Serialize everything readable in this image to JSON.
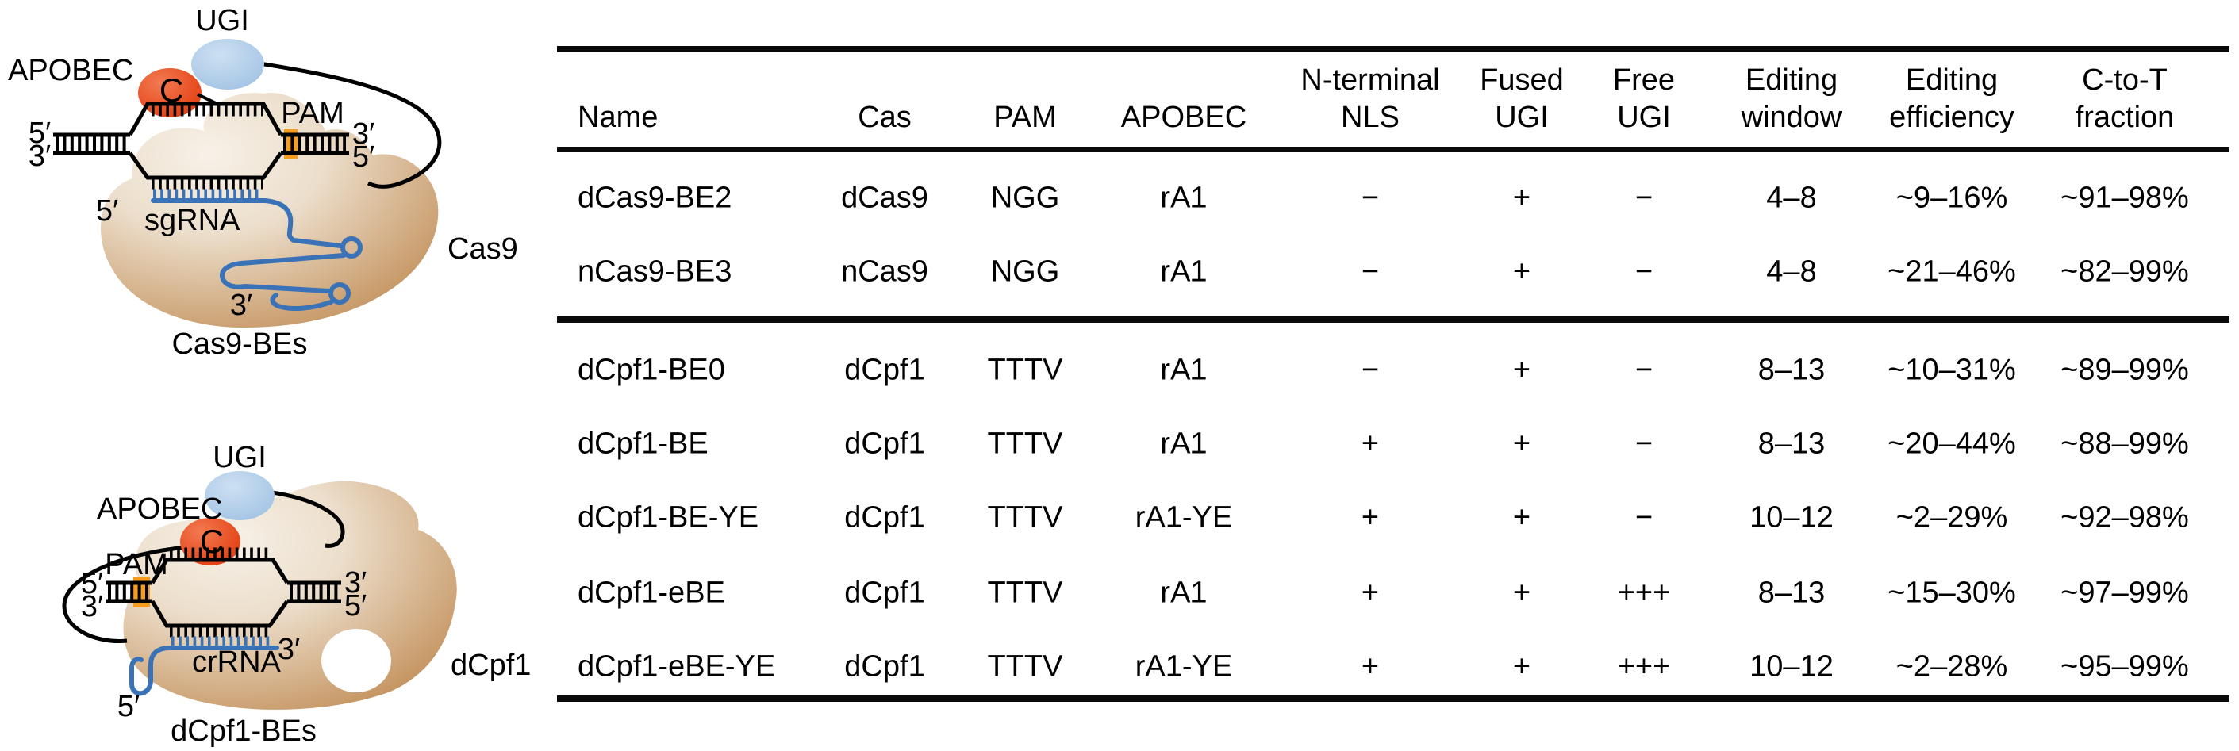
{
  "figure": {
    "colors": {
      "apobec_red": "#e23c0e",
      "ugi_blue": "#a9c8e6",
      "protein_tan_dark": "#c08a52",
      "protein_tan_light": "#f6f0e7",
      "pam_orange": "#f59d20",
      "rna_blue": "#3a72b8",
      "line_black": "#000000"
    },
    "diagrams": {
      "cas9": {
        "ugi_label": "UGI",
        "apobec_label": "APOBEC",
        "deaminase_letter": "C",
        "pam_label": "PAM",
        "left_top_end": "5′",
        "left_bottom_end": "3′",
        "right_top_end": "3′",
        "right_bottom_end": "5′",
        "guide_five_prime": "5′",
        "guide_label": "sgRNA",
        "guide_three_prime": "3′",
        "protein_label": "Cas9",
        "caption": "Cas9-BEs"
      },
      "cpf1": {
        "ugi_label": "UGI",
        "apobec_label": "APOBEC",
        "deaminase_letter": "C",
        "pam_label": "PAM",
        "left_top_end": "5′",
        "left_bottom_end": "3′",
        "right_top_end": "3′",
        "right_bottom_end": "5′",
        "guide_label": "crRNA",
        "guide_three_prime": "3′",
        "guide_five_prime": "5′",
        "protein_label": "dCpf1",
        "caption": "dCpf1-BEs"
      }
    },
    "table": {
      "columns": [
        "Name",
        "Cas",
        "PAM",
        "APOBEC",
        "N-terminal\nNLS",
        "Fused\nUGI",
        "Free\nUGI",
        "Editing\nwindow",
        "Editing\nefficiency",
        "C-to-T\nfraction"
      ],
      "groups": [
        {
          "rows": [
            [
              "dCas9-BE2",
              "dCas9",
              "NGG",
              "rA1",
              "−",
              "+",
              "−",
              "4–8",
              "~9–16%",
              "~91–98%"
            ],
            [
              "nCas9-BE3",
              "nCas9",
              "NGG",
              "rA1",
              "−",
              "+",
              "−",
              "4–8",
              "~21–46%",
              "~82–99%"
            ]
          ]
        },
        {
          "rows": [
            [
              "dCpf1-BE0",
              "dCpf1",
              "TTTV",
              "rA1",
              "−",
              "+",
              "−",
              "8–13",
              "~10–31%",
              "~89–99%"
            ],
            [
              "dCpf1-BE",
              "dCpf1",
              "TTTV",
              "rA1",
              "+",
              "+",
              "−",
              "8–13",
              "~20–44%",
              "~88–99%"
            ],
            [
              "dCpf1-BE-YE",
              "dCpf1",
              "TTTV",
              "rA1-YE",
              "+",
              "+",
              "−",
              "10–12",
              "~2–29%",
              "~92–98%"
            ],
            [
              "dCpf1-eBE",
              "dCpf1",
              "TTTV",
              "rA1",
              "+",
              "+",
              "+++",
              "8–13",
              "~15–30%",
              "~97–99%"
            ],
            [
              "dCpf1-eBE-YE",
              "dCpf1",
              "TTTV",
              "rA1-YE",
              "+",
              "+",
              "+++",
              "10–12",
              "~2–28%",
              "~95–99%"
            ]
          ]
        }
      ]
    }
  }
}
